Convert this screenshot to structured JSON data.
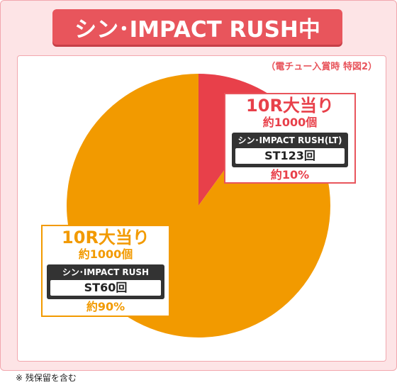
{
  "header": {
    "title": "シン･IMPACT RUSH中"
  },
  "note": "（電チュー入賞時 特図2）",
  "footnote": "※ 残保留を含む",
  "colors": {
    "red": "#e8555c",
    "orange": "#f29a00",
    "pink_bg": "#fde4e6"
  },
  "chart_data": {
    "type": "pie",
    "title": "シン･IMPACT RUSH中",
    "slices": [
      {
        "label": "10R大当り",
        "sub": "約1000個",
        "mode": "シン･IMPACT RUSH(LT)",
        "st": "ST123回",
        "percent_label": "約10%",
        "value": 10,
        "color": "#e8404a"
      },
      {
        "label": "10R大当り",
        "sub": "約1000個",
        "mode": "シン･IMPACT RUSH",
        "st": "ST60回",
        "percent_label": "約90%",
        "value": 90,
        "color": "#f29a00"
      }
    ]
  }
}
